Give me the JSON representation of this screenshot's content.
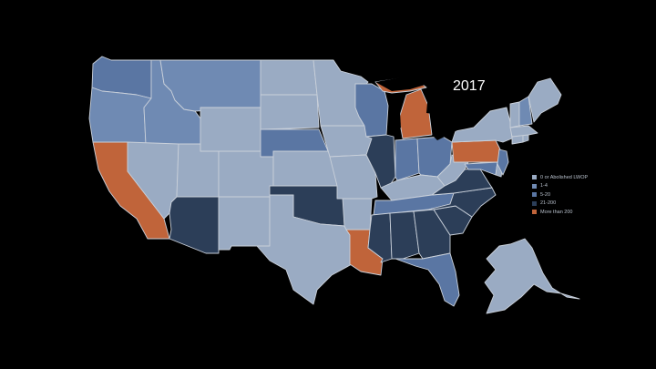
{
  "title": "2017",
  "colors": {
    "background": "#000000",
    "border": "#c9d0da",
    "zero_or_abolished": "#9aabc3",
    "one_to_four": "#6f8ab3",
    "five_to_twenty": "#5a76a3",
    "twenty_one_to_two_hundred": "#2c3e58",
    "more_than_200": "#c0643a"
  },
  "legend": [
    {
      "label": "0 or Abolished LWOP",
      "color": "#9aabc3"
    },
    {
      "label": "1-4",
      "color": "#6f8ab3"
    },
    {
      "label": "5-20",
      "color": "#5a76a3"
    },
    {
      "label": "21-200",
      "color": "#2c3e58"
    },
    {
      "label": "More than 200",
      "color": "#c0643a"
    }
  ]
}
